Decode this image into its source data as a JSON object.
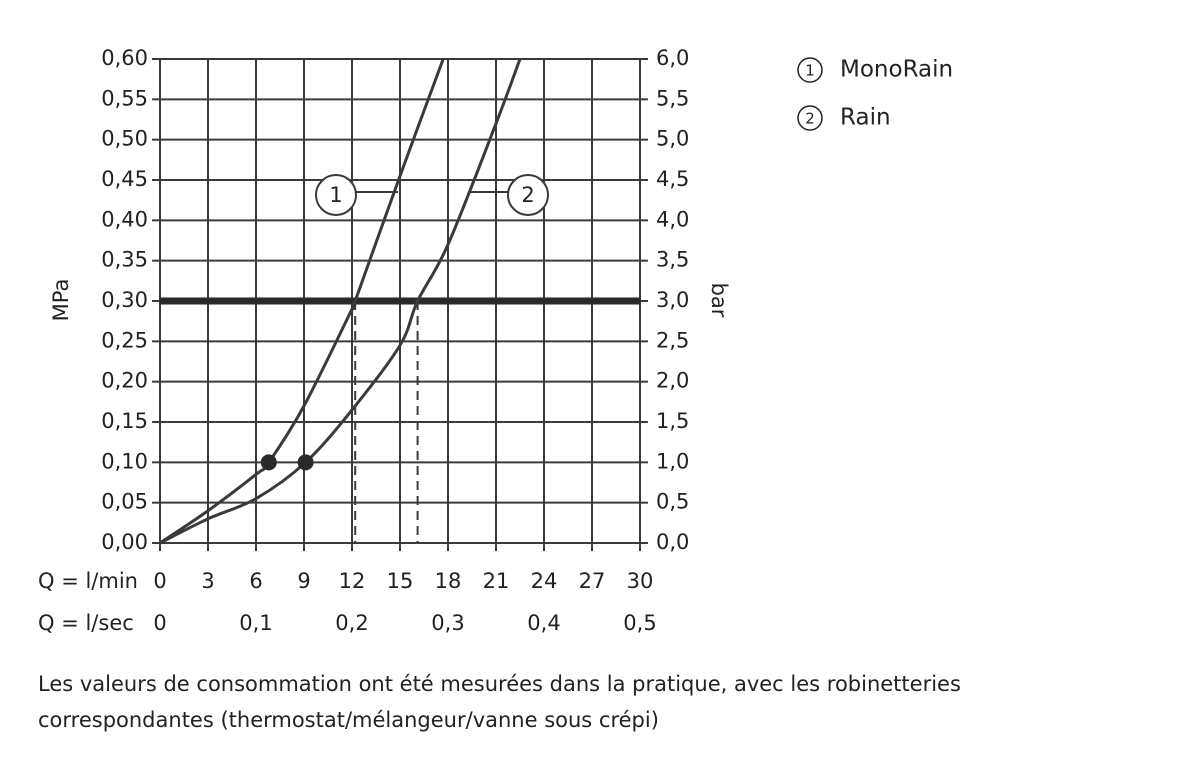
{
  "chart_data": {
    "type": "line",
    "xlabel": "Q = l/min",
    "x2label": "Q = l/sec",
    "ylabel": "MPa",
    "y2label": "bar",
    "xlim": [
      0,
      30
    ],
    "xticks": [
      0,
      3,
      6,
      9,
      12,
      15,
      18,
      21,
      24,
      27,
      30
    ],
    "x2lim": [
      0,
      0.5
    ],
    "x2ticks": [
      0,
      {
        "value": 0.1,
        "label": "0,1"
      },
      {
        "value": 0.2,
        "label": "0,2"
      },
      {
        "value": 0.3,
        "label": "0,3"
      },
      {
        "value": 0.4,
        "label": "0,4"
      },
      {
        "value": 0.5,
        "label": "0,5"
      }
    ],
    "ylim": [
      0,
      0.6
    ],
    "yticks": [
      {
        "value": 0,
        "label": "0,00"
      },
      {
        "value": 0.05,
        "label": "0,05"
      },
      {
        "value": 0.1,
        "label": "0,10"
      },
      {
        "value": 0.15,
        "label": "0,15"
      },
      {
        "value": 0.2,
        "label": "0,20"
      },
      {
        "value": 0.25,
        "label": "0,25"
      },
      {
        "value": 0.3,
        "label": "0,30"
      },
      {
        "value": 0.35,
        "label": "0,35"
      },
      {
        "value": 0.4,
        "label": "0,40"
      },
      {
        "value": 0.45,
        "label": "0,45"
      },
      {
        "value": 0.5,
        "label": "0,50"
      },
      {
        "value": 0.55,
        "label": "0,55"
      },
      {
        "value": 0.6,
        "label": "0,60"
      }
    ],
    "y2lim": [
      0,
      6
    ],
    "y2ticks": [
      {
        "value": 0,
        "label": "0,0"
      },
      {
        "value": 0.5,
        "label": "0,5"
      },
      {
        "value": 1,
        "label": "1,0"
      },
      {
        "value": 1.5,
        "label": "1,5"
      },
      {
        "value": 2,
        "label": "2,0"
      },
      {
        "value": 2.5,
        "label": "2,5"
      },
      {
        "value": 3,
        "label": "3,0"
      },
      {
        "value": 3.5,
        "label": "3,5"
      },
      {
        "value": 4,
        "label": "4,0"
      },
      {
        "value": 4.5,
        "label": "4,5"
      },
      {
        "value": 5,
        "label": "5,0"
      },
      {
        "value": 5.5,
        "label": "5,5"
      },
      {
        "value": 6,
        "label": "6,0"
      }
    ],
    "grid": true,
    "color": "#3a3a3a",
    "series": [
      {
        "name": "MonoRain",
        "label": "1",
        "x": [
          0,
          3,
          6,
          6.8,
          9,
          12,
          12.2,
          15,
          17.7
        ],
        "values": [
          0,
          0.04,
          0.085,
          0.1,
          0.17,
          0.29,
          0.3,
          0.455,
          0.6
        ]
      },
      {
        "name": "Rain",
        "label": "2",
        "x": [
          0,
          3,
          6,
          9.1,
          12,
          15,
          16.1,
          18,
          21,
          22.5
        ],
        "values": [
          0,
          0.03,
          0.055,
          0.1,
          0.165,
          0.245,
          0.3,
          0.37,
          0.52,
          0.6
        ]
      }
    ],
    "hline": 0.3,
    "points": [
      {
        "x": 6.8,
        "y": 0.1
      },
      {
        "x": 9.1,
        "y": 0.1
      }
    ],
    "drops": [
      {
        "x": 12.2,
        "y": 0.3
      },
      {
        "x": 16.1,
        "y": 0.3
      }
    ],
    "note": "Les valeurs de consommation ont été mesurées dans la pratique, avec les robinetteries correspondantes (thermostat/mélangeur/vanne sous crépi)"
  }
}
